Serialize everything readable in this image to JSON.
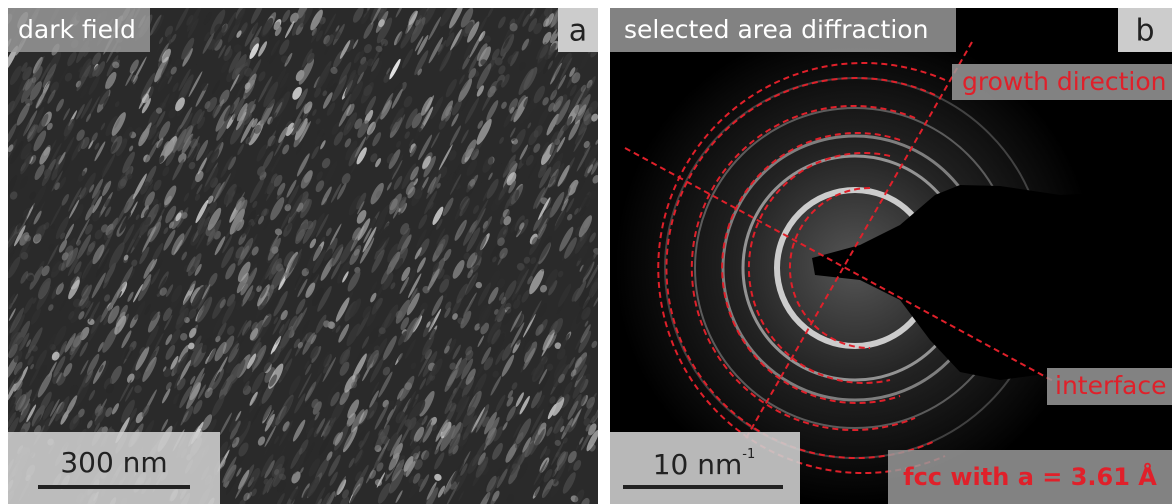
{
  "panels": [
    {
      "title": "dark field",
      "letter": "a",
      "scale_bar": {
        "label": "300 nm"
      }
    },
    {
      "title": "selected area diffraction",
      "letter": "b",
      "scale_bar": {
        "label": "10 nm",
        "exponent": "-1"
      },
      "annotations": [
        "growth direction",
        "interface"
      ],
      "note": "fcc with a = 3.61 Å"
    }
  ]
}
